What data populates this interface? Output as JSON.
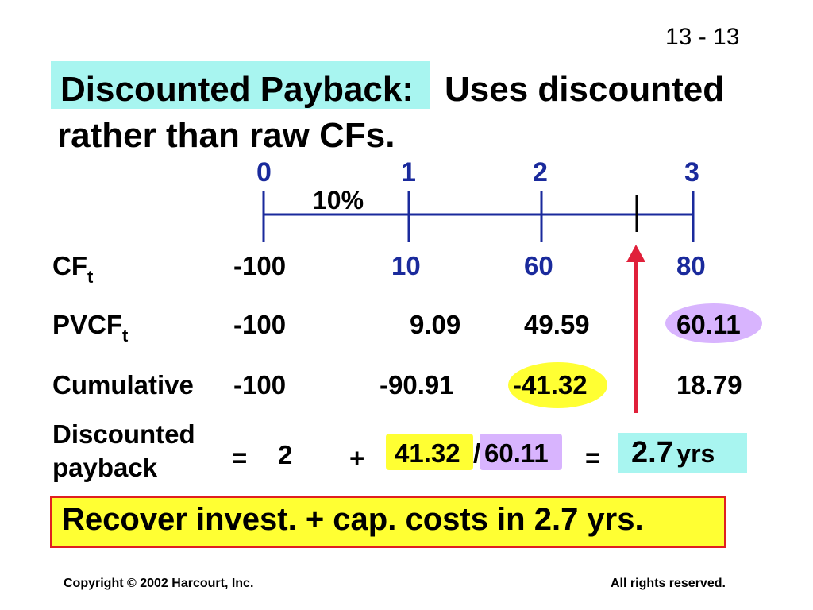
{
  "slide_number": "13 - 13",
  "title": {
    "highlighted": "Discounted Payback:",
    "rest": "Uses discounted",
    "line2": "rather than raw CFs."
  },
  "timeline": {
    "periods": [
      "0",
      "1",
      "2",
      "3"
    ],
    "rate": "10%"
  },
  "rows": {
    "cf": {
      "label": "CF",
      "sub": "t",
      "values": [
        "-100",
        "10",
        "60",
        "80"
      ]
    },
    "pvcf": {
      "label": "PVCF",
      "sub": "t",
      "values": [
        "-100",
        "9.09",
        "49.59",
        "60.11"
      ]
    },
    "cumulative": {
      "label": "Cumulative",
      "values": [
        "-100",
        "-90.91",
        "-41.32",
        "18.79"
      ]
    }
  },
  "payback": {
    "label_line1": "Discounted",
    "label_line2": "payback",
    "eq1": "=",
    "years": "2",
    "plus": "+",
    "numerator": "41.32",
    "slash": "/",
    "denominator": "60.11",
    "eq2": "=",
    "result_value": "2.7",
    "result_unit": "yrs"
  },
  "conclusion": "Recover invest. + cap. costs in 2.7 yrs.",
  "footer": {
    "left": "Copyright © 2002 Harcourt, Inc.",
    "right": "All rights reserved."
  },
  "colors": {
    "timeline_blue": "#1a2a9c",
    "arrow_red": "#e0203a",
    "highlight_yellow": "#ffff33",
    "highlight_lavender": "#d8b4fe",
    "highlight_cyan": "#a8f5f0"
  }
}
